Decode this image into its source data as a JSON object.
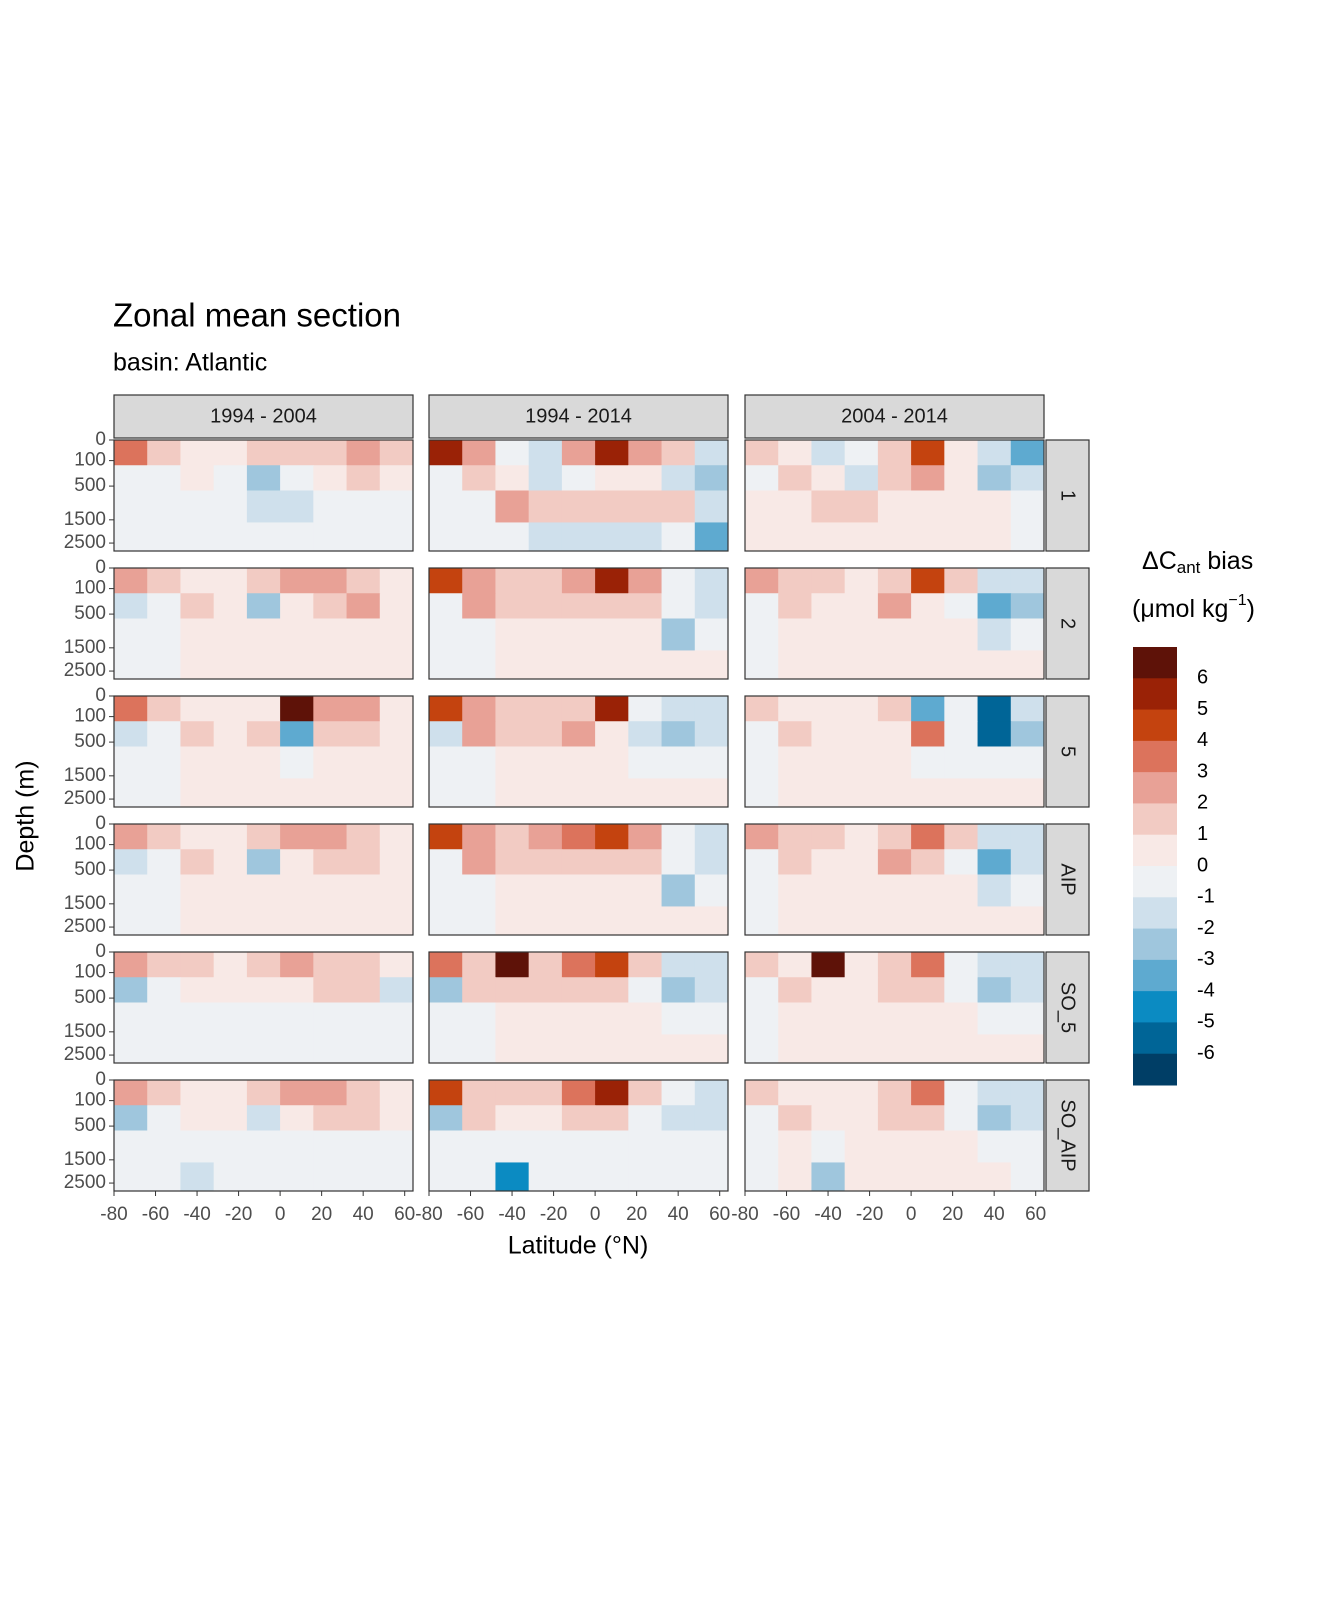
{
  "chart_data": {
    "type": "contour",
    "title": "Zonal mean section",
    "subtitle": "basin: Atlantic",
    "x_label": "Latitude (°N)",
    "y_label": "Depth (m)",
    "xlim": [
      -80,
      64
    ],
    "ylim": [
      0,
      2900
    ],
    "y_scale": "sqrt",
    "y_reverse": true,
    "xticks": [
      -80,
      -60,
      -40,
      -20,
      0,
      20,
      40,
      60
    ],
    "yticks": [
      0,
      100,
      500,
      1500,
      2500
    ],
    "x_bins": [
      -80,
      -64,
      -48,
      -32,
      -16,
      0,
      16,
      32,
      48,
      64
    ],
    "y_bins": [
      0,
      150,
      600,
      1600,
      2900
    ],
    "facet_cols": [
      "1994 - 2004",
      "1994 - 2014",
      "2004 - 2014"
    ],
    "facet_rows": [
      "1",
      "2",
      "5",
      "AIP",
      "SO_5",
      "SO_AIP"
    ],
    "legend": {
      "title": [
        "ΔC",
        "ant",
        " bias",
        "(μmol kg",
        "−1",
        ")"
      ],
      "breaks": [
        6,
        5,
        4,
        3,
        2,
        1,
        0,
        -1,
        -2,
        -3,
        -4,
        -5,
        -6
      ],
      "colors": [
        "#5e1208",
        "#9a2206",
        "#c4430f",
        "#dc735c",
        "#e8a196",
        "#f2cbc3",
        "#f8e9e6",
        "#eef1f4",
        "#cfe0ec",
        "#9fc6dd",
        "#5eaad0",
        "#0b8bc2",
        "#006597",
        "#003e66"
      ]
    },
    "panels": [
      [
        {
          "z": [
            [
              3.5,
              1.5,
              0.5,
              0.5,
              1.5,
              1.5,
              1.5,
              2.5,
              1.5
            ],
            [
              -0.5,
              -0.5,
              0.5,
              -0.5,
              -2.5,
              -0.5,
              0.5,
              1.5,
              0.5
            ],
            [
              -0.5,
              -0.5,
              -0.5,
              -0.5,
              -1.5,
              -1.5,
              -0.5,
              -0.5,
              -0.5
            ],
            [
              -0.5,
              -0.5,
              -0.5,
              -0.5,
              -0.5,
              -0.5,
              -0.5,
              -0.5,
              -0.5
            ]
          ]
        },
        {
          "z": [
            [
              5.5,
              2.5,
              -0.5,
              -1.5,
              2.5,
              5.5,
              2.5,
              1.5,
              -1.5
            ],
            [
              -0.5,
              1.5,
              0.5,
              -1.5,
              -0.5,
              0.5,
              0.5,
              -1.5,
              -2.5
            ],
            [
              -0.5,
              -0.5,
              2.5,
              1.5,
              1.5,
              1.5,
              1.5,
              1.5,
              -1.5
            ],
            [
              -0.5,
              -0.5,
              -0.5,
              -1.5,
              -1.5,
              -1.5,
              -1.5,
              -0.5,
              -3.5
            ]
          ]
        },
        {
          "z": [
            [
              1.5,
              0.5,
              -1.5,
              -0.5,
              1.5,
              4.5,
              0.5,
              -1.5,
              -3.5
            ],
            [
              -0.5,
              1.5,
              0.5,
              -1.5,
              1.5,
              2.5,
              0.5,
              -2.5,
              -1.5
            ],
            [
              0.5,
              0.5,
              1.5,
              1.5,
              0.5,
              0.5,
              0.5,
              0.5,
              -0.5
            ],
            [
              0.5,
              0.5,
              0.5,
              0.5,
              0.5,
              0.5,
              0.5,
              0.5,
              -0.5
            ]
          ]
        }
      ],
      [
        {
          "z": [
            [
              2.5,
              1.5,
              0.5,
              0.5,
              1.5,
              2.5,
              2.5,
              1.5,
              0.5
            ],
            [
              -1.5,
              -0.5,
              1.5,
              0.5,
              -2.5,
              0.5,
              1.5,
              2.5,
              0.5
            ],
            [
              -0.5,
              -0.5,
              0.5,
              0.5,
              0.5,
              0.5,
              0.5,
              0.5,
              0.5
            ],
            [
              -0.5,
              -0.5,
              0.5,
              0.5,
              0.5,
              0.5,
              0.5,
              0.5,
              0.5
            ]
          ]
        },
        {
          "z": [
            [
              4.5,
              2.5,
              1.5,
              1.5,
              2.5,
              5.5,
              2.5,
              -0.5,
              -1.5
            ],
            [
              -0.5,
              2.5,
              1.5,
              1.5,
              1.5,
              1.5,
              1.5,
              -0.5,
              -1.5
            ],
            [
              -0.5,
              -0.5,
              0.5,
              0.5,
              0.5,
              0.5,
              0.5,
              -2.5,
              -0.5
            ],
            [
              -0.5,
              -0.5,
              0.5,
              0.5,
              0.5,
              0.5,
              0.5,
              0.5,
              0.5
            ]
          ]
        },
        {
          "z": [
            [
              2.5,
              1.5,
              1.5,
              0.5,
              1.5,
              4.5,
              1.5,
              -1.5,
              -1.5
            ],
            [
              -0.5,
              1.5,
              0.5,
              0.5,
              2.5,
              0.5,
              -0.5,
              -3.5,
              -2.5
            ],
            [
              -0.5,
              0.5,
              0.5,
              0.5,
              0.5,
              0.5,
              0.5,
              -1.5,
              -0.5
            ],
            [
              -0.5,
              0.5,
              0.5,
              0.5,
              0.5,
              0.5,
              0.5,
              0.5,
              0.5
            ]
          ]
        }
      ],
      [
        {
          "z": [
            [
              3.5,
              1.5,
              0.5,
              0.5,
              0.5,
              6.5,
              2.5,
              2.5,
              0.5
            ],
            [
              -1.5,
              -0.5,
              1.5,
              0.5,
              1.5,
              -3.5,
              1.5,
              1.5,
              0.5
            ],
            [
              -0.5,
              -0.5,
              0.5,
              0.5,
              0.5,
              -0.5,
              0.5,
              0.5,
              0.5
            ],
            [
              -0.5,
              -0.5,
              0.5,
              0.5,
              0.5,
              0.5,
              0.5,
              0.5,
              0.5
            ]
          ]
        },
        {
          "z": [
            [
              4.5,
              2.5,
              1.5,
              1.5,
              1.5,
              5.5,
              -0.5,
              -1.5,
              -1.5
            ],
            [
              -1.5,
              2.5,
              1.5,
              1.5,
              2.5,
              0.5,
              -1.5,
              -2.5,
              -1.5
            ],
            [
              -0.5,
              -0.5,
              0.5,
              0.5,
              0.5,
              0.5,
              -0.5,
              -0.5,
              -0.5
            ],
            [
              -0.5,
              -0.5,
              0.5,
              0.5,
              0.5,
              0.5,
              0.5,
              0.5,
              0.5
            ]
          ]
        },
        {
          "z": [
            [
              1.5,
              0.5,
              0.5,
              0.5,
              1.5,
              -3.5,
              -0.5,
              -5.5,
              -1.5
            ],
            [
              -0.5,
              1.5,
              0.5,
              0.5,
              0.5,
              3.5,
              -0.5,
              -5.5,
              -2.5
            ],
            [
              -0.5,
              0.5,
              0.5,
              0.5,
              0.5,
              -0.5,
              -0.5,
              -0.5,
              -0.5
            ],
            [
              -0.5,
              0.5,
              0.5,
              0.5,
              0.5,
              0.5,
              0.5,
              0.5,
              0.5
            ]
          ]
        }
      ],
      [
        {
          "z": [
            [
              2.5,
              1.5,
              0.5,
              0.5,
              1.5,
              2.5,
              2.5,
              1.5,
              0.5
            ],
            [
              -1.5,
              -0.5,
              1.5,
              0.5,
              -2.5,
              0.5,
              1.5,
              1.5,
              0.5
            ],
            [
              -0.5,
              -0.5,
              0.5,
              0.5,
              0.5,
              0.5,
              0.5,
              0.5,
              0.5
            ],
            [
              -0.5,
              -0.5,
              0.5,
              0.5,
              0.5,
              0.5,
              0.5,
              0.5,
              0.5
            ]
          ]
        },
        {
          "z": [
            [
              4.5,
              2.5,
              1.5,
              2.5,
              3.5,
              4.5,
              2.5,
              -0.5,
              -1.5
            ],
            [
              -0.5,
              2.5,
              1.5,
              1.5,
              1.5,
              1.5,
              1.5,
              -0.5,
              -1.5
            ],
            [
              -0.5,
              -0.5,
              0.5,
              0.5,
              0.5,
              0.5,
              0.5,
              -2.5,
              -0.5
            ],
            [
              -0.5,
              -0.5,
              0.5,
              0.5,
              0.5,
              0.5,
              0.5,
              0.5,
              0.5
            ]
          ]
        },
        {
          "z": [
            [
              2.5,
              1.5,
              1.5,
              0.5,
              1.5,
              3.5,
              1.5,
              -1.5,
              -1.5
            ],
            [
              -0.5,
              1.5,
              0.5,
              0.5,
              2.5,
              1.5,
              -0.5,
              -3.5,
              -1.5
            ],
            [
              -0.5,
              0.5,
              0.5,
              0.5,
              0.5,
              0.5,
              0.5,
              -1.5,
              -0.5
            ],
            [
              -0.5,
              0.5,
              0.5,
              0.5,
              0.5,
              0.5,
              0.5,
              0.5,
              0.5
            ]
          ]
        }
      ],
      [
        {
          "z": [
            [
              2.5,
              1.5,
              1.5,
              0.5,
              1.5,
              2.5,
              1.5,
              1.5,
              0.5
            ],
            [
              -2.5,
              -0.5,
              0.5,
              0.5,
              0.5,
              0.5,
              1.5,
              1.5,
              -1.5
            ],
            [
              -0.5,
              -0.5,
              -0.5,
              -0.5,
              -0.5,
              -0.5,
              -0.5,
              -0.5,
              -0.5
            ],
            [
              -0.5,
              -0.5,
              -0.5,
              -0.5,
              -0.5,
              -0.5,
              -0.5,
              -0.5,
              -0.5
            ]
          ]
        },
        {
          "z": [
            [
              3.5,
              1.5,
              6.5,
              1.5,
              3.5,
              4.5,
              1.5,
              -1.5,
              -1.5
            ],
            [
              -2.5,
              1.5,
              1.5,
              1.5,
              1.5,
              1.5,
              -0.5,
              -2.5,
              -1.5
            ],
            [
              -0.5,
              -0.5,
              0.5,
              0.5,
              0.5,
              0.5,
              0.5,
              -0.5,
              -0.5
            ],
            [
              -0.5,
              -0.5,
              0.5,
              0.5,
              0.5,
              0.5,
              0.5,
              0.5,
              0.5
            ]
          ]
        },
        {
          "z": [
            [
              1.5,
              0.5,
              6.5,
              0.5,
              1.5,
              3.5,
              -0.5,
              -1.5,
              -1.5
            ],
            [
              -0.5,
              1.5,
              0.5,
              0.5,
              1.5,
              1.5,
              -0.5,
              -2.5,
              -1.5
            ],
            [
              -0.5,
              0.5,
              0.5,
              0.5,
              0.5,
              0.5,
              0.5,
              -0.5,
              -0.5
            ],
            [
              -0.5,
              0.5,
              0.5,
              0.5,
              0.5,
              0.5,
              0.5,
              0.5,
              0.5
            ]
          ]
        }
      ],
      [
        {
          "z": [
            [
              2.5,
              1.5,
              0.5,
              0.5,
              1.5,
              2.5,
              2.5,
              1.5,
              0.5
            ],
            [
              -2.5,
              -0.5,
              0.5,
              0.5,
              -1.5,
              0.5,
              1.5,
              1.5,
              0.5
            ],
            [
              -0.5,
              -0.5,
              -0.5,
              -0.5,
              -0.5,
              -0.5,
              -0.5,
              -0.5,
              -0.5
            ],
            [
              -0.5,
              -0.5,
              -1.5,
              -0.5,
              -0.5,
              -0.5,
              -0.5,
              -0.5,
              -0.5
            ]
          ]
        },
        {
          "z": [
            [
              4.5,
              1.5,
              1.5,
              1.5,
              3.5,
              5.5,
              1.5,
              -0.5,
              -1.5
            ],
            [
              -2.5,
              1.5,
              0.5,
              0.5,
              1.5,
              1.5,
              -0.5,
              -1.5,
              -1.5
            ],
            [
              -0.5,
              -0.5,
              -0.5,
              -0.5,
              -0.5,
              -0.5,
              -0.5,
              -0.5,
              -0.5
            ],
            [
              -0.5,
              -0.5,
              -4.5,
              -0.5,
              -0.5,
              -0.5,
              -0.5,
              -0.5,
              -0.5
            ]
          ]
        },
        {
          "z": [
            [
              1.5,
              0.5,
              0.5,
              0.5,
              1.5,
              3.5,
              -0.5,
              -1.5,
              -1.5
            ],
            [
              -0.5,
              1.5,
              0.5,
              0.5,
              1.5,
              1.5,
              -0.5,
              -2.5,
              -1.5
            ],
            [
              -0.5,
              0.5,
              -0.5,
              0.5,
              0.5,
              0.5,
              0.5,
              -0.5,
              -0.5
            ],
            [
              -0.5,
              0.5,
              -2.5,
              0.5,
              0.5,
              0.5,
              0.5,
              0.5,
              -0.5
            ]
          ]
        }
      ]
    ]
  }
}
